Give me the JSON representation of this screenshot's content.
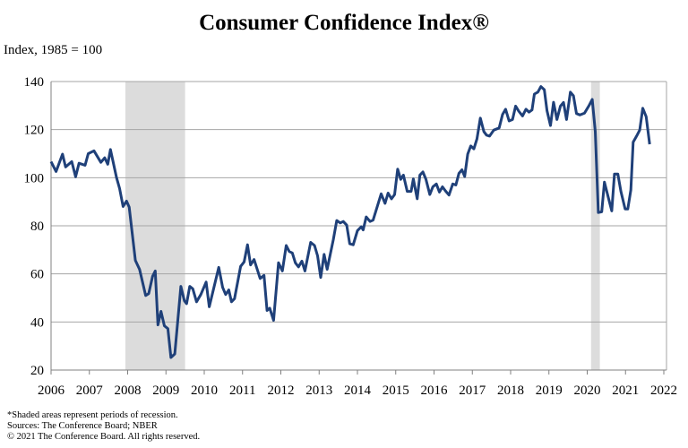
{
  "chart_data": {
    "type": "line",
    "title": "Consumer Confidence Index®",
    "ylabel": "Index, 1985 = 100",
    "xlabel": "",
    "xlim": [
      2006,
      2022
    ],
    "ylim": [
      20,
      140
    ],
    "yticks": [
      20,
      40,
      60,
      80,
      100,
      120,
      140
    ],
    "xticks": [
      2006,
      2007,
      2008,
      2009,
      2010,
      2011,
      2012,
      2013,
      2014,
      2015,
      2016,
      2017,
      2018,
      2019,
      2020,
      2021,
      2022
    ],
    "grid": "horizontal",
    "line_color": "#1f4079",
    "recession_color": "#dcdcdc",
    "recessions": [
      [
        2007.94,
        2009.5
      ],
      [
        2020.1,
        2020.33
      ]
    ],
    "series": [
      {
        "name": "Consumer Confidence Index",
        "points": [
          [
            2006.0,
            106.7
          ],
          [
            2006.13,
            102.6
          ],
          [
            2006.3,
            109.8
          ],
          [
            2006.38,
            104.5
          ],
          [
            2006.54,
            106.7
          ],
          [
            2006.64,
            100.4
          ],
          [
            2006.73,
            106
          ],
          [
            2006.89,
            105.2
          ],
          [
            2006.97,
            110
          ],
          [
            2007.12,
            111.2
          ],
          [
            2007.3,
            106.4
          ],
          [
            2007.4,
            108.3
          ],
          [
            2007.48,
            105.6
          ],
          [
            2007.55,
            111.7
          ],
          [
            2007.71,
            100
          ],
          [
            2007.79,
            95.5
          ],
          [
            2007.88,
            88
          ],
          [
            2007.97,
            90.3
          ],
          [
            2008.04,
            87.8
          ],
          [
            2008.2,
            65.6
          ],
          [
            2008.31,
            61.9
          ],
          [
            2008.47,
            51
          ],
          [
            2008.55,
            51.8
          ],
          [
            2008.65,
            59
          ],
          [
            2008.72,
            61.2
          ],
          [
            2008.79,
            38.8
          ],
          [
            2008.87,
            44.4
          ],
          [
            2008.96,
            38.4
          ],
          [
            2009.05,
            37.2
          ],
          [
            2009.13,
            25.2
          ],
          [
            2009.23,
            26.7
          ],
          [
            2009.39,
            54.8
          ],
          [
            2009.48,
            48.8
          ],
          [
            2009.54,
            47.6
          ],
          [
            2009.62,
            54.8
          ],
          [
            2009.7,
            53.8
          ],
          [
            2009.8,
            48.4
          ],
          [
            2009.91,
            51.4
          ],
          [
            2010.05,
            56.6
          ],
          [
            2010.13,
            46.3
          ],
          [
            2010.38,
            62.7
          ],
          [
            2010.48,
            54.4
          ],
          [
            2010.56,
            51.4
          ],
          [
            2010.64,
            53.3
          ],
          [
            2010.71,
            48.4
          ],
          [
            2010.79,
            49.7
          ],
          [
            2010.95,
            63.1
          ],
          [
            2011.04,
            65
          ],
          [
            2011.13,
            72.1
          ],
          [
            2011.21,
            63.7
          ],
          [
            2011.3,
            66
          ],
          [
            2011.46,
            58.1
          ],
          [
            2011.56,
            59.4
          ],
          [
            2011.64,
            44.8
          ],
          [
            2011.71,
            45.7
          ],
          [
            2011.81,
            40.7
          ],
          [
            2011.94,
            64.6
          ],
          [
            2012.04,
            61.2
          ],
          [
            2012.14,
            71.8
          ],
          [
            2012.22,
            69.3
          ],
          [
            2012.3,
            68.7
          ],
          [
            2012.38,
            64.6
          ],
          [
            2012.46,
            62.9
          ],
          [
            2012.55,
            65.3
          ],
          [
            2012.63,
            61.2
          ],
          [
            2012.78,
            73.1
          ],
          [
            2012.88,
            71.8
          ],
          [
            2012.96,
            67.5
          ],
          [
            2013.04,
            58.5
          ],
          [
            2013.13,
            68.1
          ],
          [
            2013.21,
            61.9
          ],
          [
            2013.37,
            74.3
          ],
          [
            2013.46,
            82.2
          ],
          [
            2013.55,
            81.2
          ],
          [
            2013.63,
            81.8
          ],
          [
            2013.72,
            80.3
          ],
          [
            2013.8,
            72.5
          ],
          [
            2013.89,
            72.1
          ],
          [
            2014.0,
            78
          ],
          [
            2014.1,
            79.6
          ],
          [
            2014.15,
            78.3
          ],
          [
            2014.23,
            83.7
          ],
          [
            2014.33,
            81.8
          ],
          [
            2014.41,
            82.4
          ],
          [
            2014.62,
            93.3
          ],
          [
            2014.72,
            89.3
          ],
          [
            2014.8,
            93.6
          ],
          [
            2014.89,
            91.2
          ],
          [
            2014.97,
            93
          ],
          [
            2015.05,
            103.6
          ],
          [
            2015.13,
            99.3
          ],
          [
            2015.2,
            101.1
          ],
          [
            2015.3,
            94.3
          ],
          [
            2015.4,
            94.3
          ],
          [
            2015.46,
            99.5
          ],
          [
            2015.56,
            91.2
          ],
          [
            2015.63,
            101.1
          ],
          [
            2015.71,
            102.4
          ],
          [
            2015.79,
            99.3
          ],
          [
            2015.89,
            93
          ],
          [
            2015.97,
            96.2
          ],
          [
            2016.06,
            97.4
          ],
          [
            2016.14,
            94
          ],
          [
            2016.22,
            96.2
          ],
          [
            2016.3,
            94.5
          ],
          [
            2016.39,
            92.8
          ],
          [
            2016.49,
            97.4
          ],
          [
            2016.57,
            97
          ],
          [
            2016.65,
            101.8
          ],
          [
            2016.73,
            103.3
          ],
          [
            2016.8,
            100.5
          ],
          [
            2016.88,
            109.8
          ],
          [
            2016.96,
            113.2
          ],
          [
            2017.04,
            112
          ],
          [
            2017.12,
            116.1
          ],
          [
            2017.21,
            124.8
          ],
          [
            2017.3,
            119.2
          ],
          [
            2017.37,
            117.7
          ],
          [
            2017.45,
            117.3
          ],
          [
            2017.56,
            119.8
          ],
          [
            2017.7,
            120.7
          ],
          [
            2017.79,
            126.3
          ],
          [
            2017.87,
            128.5
          ],
          [
            2017.96,
            123.6
          ],
          [
            2018.05,
            124.2
          ],
          [
            2018.13,
            129.8
          ],
          [
            2018.21,
            127.7
          ],
          [
            2018.31,
            125.7
          ],
          [
            2018.4,
            128.5
          ],
          [
            2018.48,
            127.3
          ],
          [
            2018.56,
            128.2
          ],
          [
            2018.62,
            134.8
          ],
          [
            2018.71,
            135.6
          ],
          [
            2018.79,
            137.9
          ],
          [
            2018.88,
            136.6
          ],
          [
            2018.95,
            127.9
          ],
          [
            2019.04,
            121.7
          ],
          [
            2019.12,
            131.4
          ],
          [
            2019.21,
            124.2
          ],
          [
            2019.3,
            129.8
          ],
          [
            2019.38,
            131.3
          ],
          [
            2019.46,
            124.2
          ],
          [
            2019.56,
            135.6
          ],
          [
            2019.64,
            134.1
          ],
          [
            2019.72,
            126.7
          ],
          [
            2019.81,
            126.1
          ],
          [
            2019.93,
            126.9
          ],
          [
            2020.04,
            129.8
          ],
          [
            2020.13,
            132.6
          ],
          [
            2020.21,
            119.2
          ],
          [
            2020.29,
            85.5
          ],
          [
            2020.38,
            85.8
          ],
          [
            2020.45,
            98.2
          ],
          [
            2020.55,
            91.8
          ],
          [
            2020.64,
            86.2
          ],
          [
            2020.71,
            101.5
          ],
          [
            2020.8,
            101.5
          ],
          [
            2020.88,
            94.3
          ],
          [
            2020.99,
            87
          ],
          [
            2021.06,
            87
          ],
          [
            2021.14,
            94.9
          ],
          [
            2021.2,
            114.8
          ],
          [
            2021.29,
            117.3
          ],
          [
            2021.37,
            119.8
          ],
          [
            2021.45,
            128.9
          ],
          [
            2021.54,
            125.4
          ],
          [
            2021.63,
            113.9
          ]
        ]
      }
    ]
  },
  "notes": {
    "recession_note": "*Shaded areas represent periods of recession.",
    "sources": "Sources: The Conference Board; NBER",
    "copyright": "© 2021 The Conference Board. All rights reserved."
  }
}
